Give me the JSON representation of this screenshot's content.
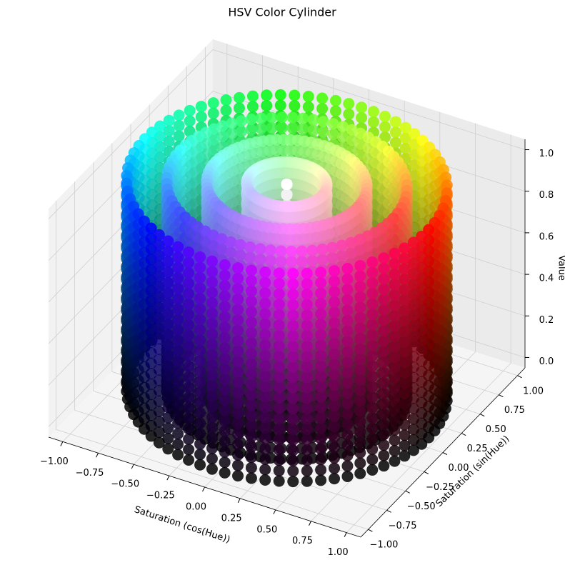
{
  "chart_data": {
    "type": "scatter3d",
    "title": "HSV Color Cylinder",
    "xlabel": "Saturation (cos(Hue))",
    "ylabel": "Saturation (sin(Hue))",
    "zlabel": "Value",
    "hue": [
      0,
      5,
      10,
      15,
      20,
      25,
      30,
      35,
      40,
      45,
      50,
      55,
      60,
      65,
      70,
      75,
      80,
      85,
      90,
      95,
      100,
      105,
      110,
      115,
      120,
      125,
      130,
      135,
      140,
      145,
      150,
      155,
      160,
      165,
      170,
      175,
      180,
      185,
      190,
      195,
      200,
      205,
      210,
      215,
      220,
      225,
      230,
      235,
      240,
      245,
      250,
      255,
      260,
      265,
      270,
      275,
      280,
      285,
      290,
      295,
      300,
      305,
      310,
      315,
      320,
      325,
      330,
      335,
      340,
      345,
      350,
      355
    ],
    "saturation": [
      0,
      0.25,
      0.5,
      0.75,
      1
    ],
    "value": [
      0,
      0.05,
      0.1,
      0.15,
      0.2,
      0.25,
      0.3,
      0.35,
      0.4,
      0.45,
      0.5,
      0.55,
      0.6,
      0.65,
      0.7,
      0.75,
      0.8,
      0.85,
      0.9,
      0.95,
      1
    ],
    "xlim": [
      -1.1,
      1.1
    ],
    "ylim": [
      -1.1,
      1.1
    ],
    "zlim": [
      -0.05,
      1.05
    ],
    "xticks": [
      {
        "value": -1,
        "label": "−1.00"
      },
      {
        "value": -0.75,
        "label": "−0.75"
      },
      {
        "value": -0.5,
        "label": "−0.50"
      },
      {
        "value": -0.25,
        "label": "−0.25"
      },
      {
        "value": 0,
        "label": "0.00"
      },
      0.25,
      {
        "value": 0.5,
        "label": "0.50"
      },
      0.75,
      {
        "value": 1,
        "label": "1.00"
      }
    ],
    "yticks": [
      {
        "value": -1,
        "label": "−1.00"
      },
      {
        "value": -0.75,
        "label": "−0.75"
      },
      {
        "value": -0.5,
        "label": "−0.50"
      },
      {
        "value": -0.25,
        "label": "−0.25"
      },
      {
        "value": 0,
        "label": "0.00"
      },
      0.25,
      {
        "value": 0.5,
        "label": "0.50"
      },
      0.75,
      {
        "value": 1,
        "label": "1.00"
      }
    ],
    "zticks": [
      {
        "value": 0,
        "label": "0.0"
      },
      0.2,
      0.4,
      0.6,
      0.8,
      {
        "value": 1,
        "label": "1.0"
      }
    ],
    "grid": true
  }
}
